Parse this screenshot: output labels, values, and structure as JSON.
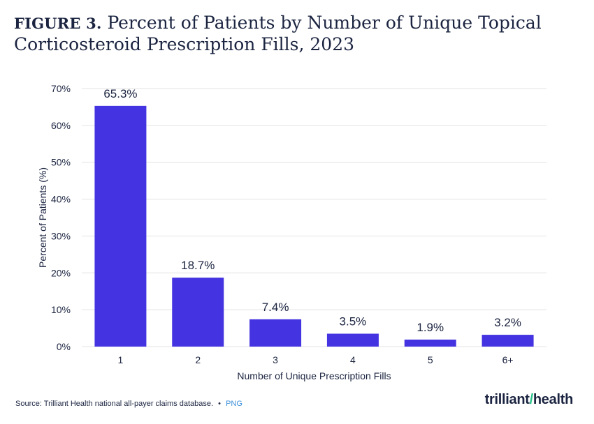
{
  "figure": {
    "label": "FIGURE 3.",
    "title": "Percent of Patients by Number of Unique Topical Corticosteroid Prescription Fills, 2023"
  },
  "chart_data": {
    "type": "bar",
    "title": "Percent of Patients by Number of Unique Topical Corticosteroid Prescription Fills, 2023",
    "categories": [
      "1",
      "2",
      "3",
      "4",
      "5",
      "6+"
    ],
    "values": [
      65.3,
      18.7,
      7.4,
      3.5,
      1.9,
      3.2
    ],
    "value_labels": [
      "65.3%",
      "18.7%",
      "7.4%",
      "3.5%",
      "1.9%",
      "3.2%"
    ],
    "xlabel": "Number of Unique Prescription Fills",
    "ylabel": "Percent of Patients (%)",
    "ylim": [
      0,
      70
    ],
    "yticks": [
      0,
      10,
      20,
      30,
      40,
      50,
      60,
      70
    ],
    "ytick_labels": [
      "0%",
      "10%",
      "20%",
      "30%",
      "40%",
      "50%",
      "60%",
      "70%"
    ],
    "grid": true,
    "bar_color": "#4433e0"
  },
  "footer": {
    "source": "Source: Trilliant Health national all-payer claims database.",
    "separator": "•",
    "link": "PNG"
  },
  "logo": {
    "text": "trilliant",
    "text2": "health"
  }
}
